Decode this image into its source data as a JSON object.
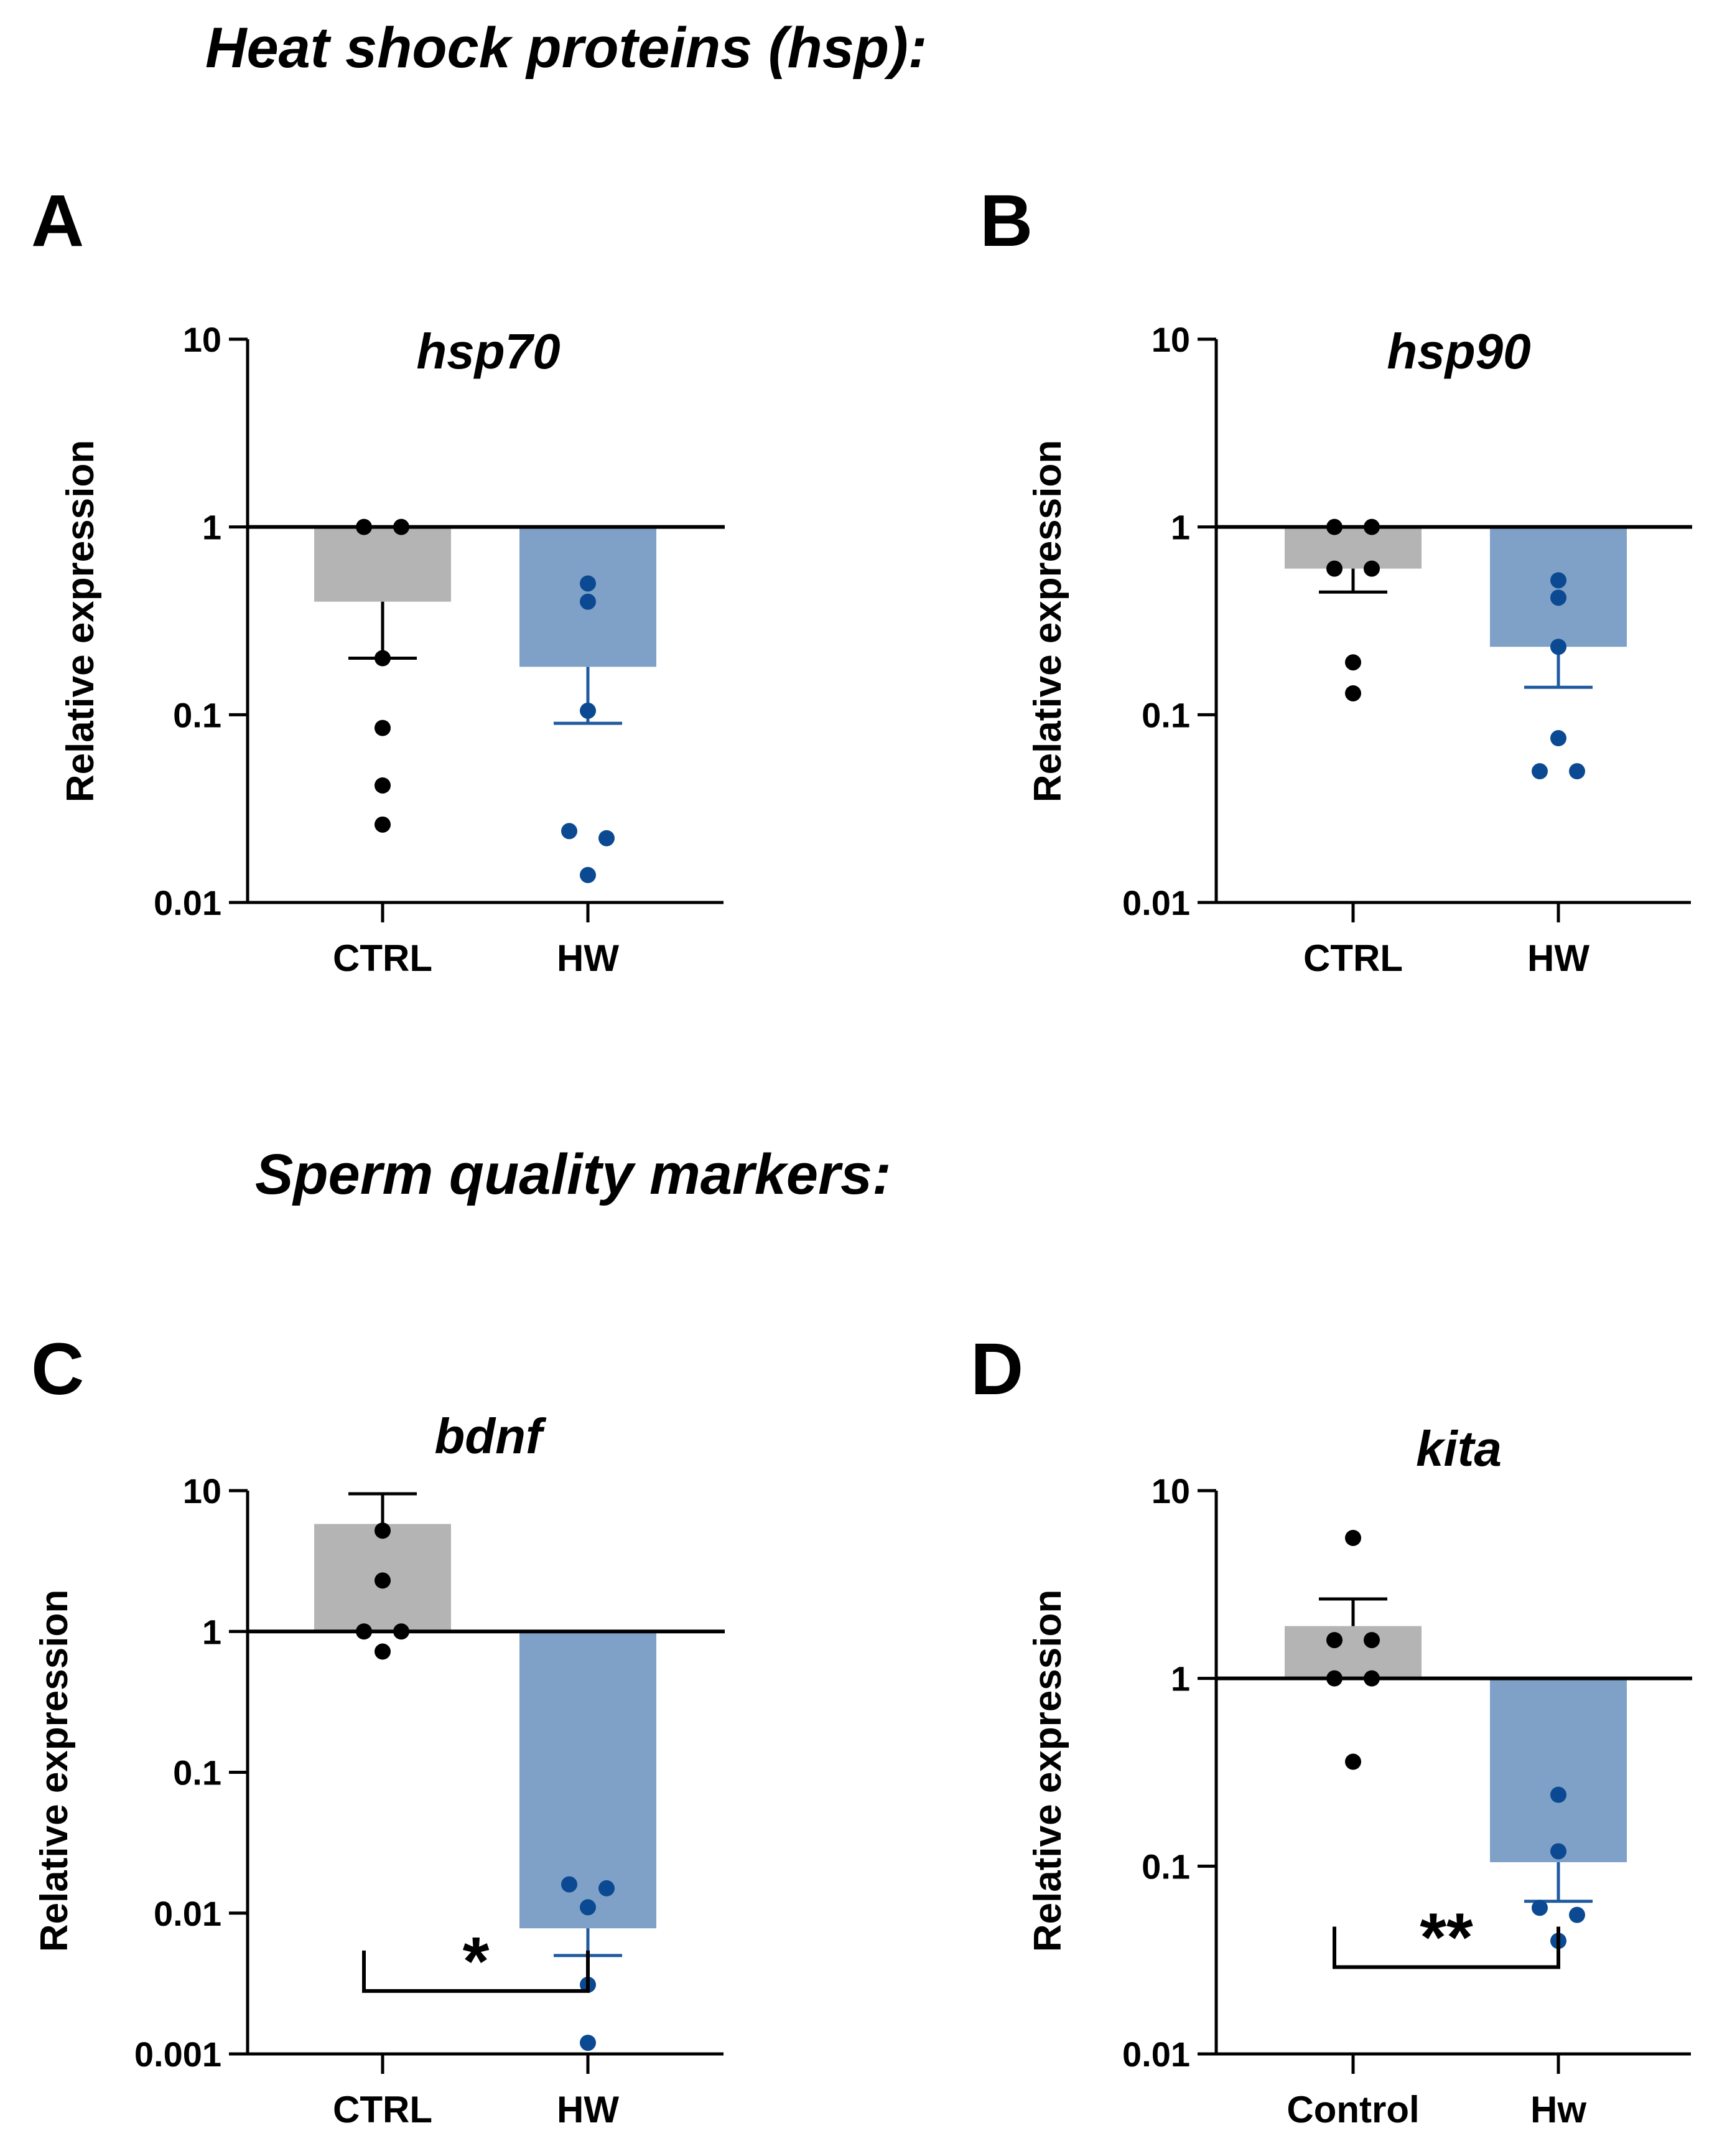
{
  "headings": {
    "hsp": "Heat shock proteins (hsp):",
    "sperm": "Sperm quality markers:"
  },
  "colors": {
    "ctrl_bar": "#b4b4b4",
    "hw_bar": "#7fa1c8",
    "ctrl_dot": "#000000",
    "hw_dot": "#0b4a92",
    "hw_err": "#1f5aa0",
    "axis": "#000000"
  },
  "chart_data": [
    {
      "panel": "A",
      "type": "bar",
      "title": "hsp70",
      "ylabel": "Relative expression",
      "yscale": "log",
      "ylim": [
        0.01,
        10
      ],
      "yticks": [
        "0.01",
        "0.1",
        "1",
        "10"
      ],
      "baseline": 1,
      "categories": [
        "CTRL",
        "HW"
      ],
      "series": [
        {
          "name": "CTRL",
          "mean": 0.4,
          "sem_end": 0.2,
          "points": [
            1.0,
            1.0,
            0.2,
            0.085,
            0.042,
            0.026
          ]
        },
        {
          "name": "HW",
          "mean": 0.18,
          "sem_end": 0.09,
          "points": [
            0.5,
            0.4,
            0.105,
            0.024,
            0.022,
            0.014
          ]
        }
      ],
      "significance": null
    },
    {
      "panel": "B",
      "type": "bar",
      "title": "hsp90",
      "ylabel": "Relative expression",
      "yscale": "log",
      "ylim": [
        0.01,
        10
      ],
      "yticks": [
        "0.01",
        "0.1",
        "1",
        "10"
      ],
      "baseline": 1,
      "categories": [
        "CTRL",
        "HW"
      ],
      "series": [
        {
          "name": "CTRL",
          "mean": 0.6,
          "sem_end": 0.45,
          "points": [
            1.0,
            1.0,
            0.6,
            0.6,
            0.19,
            0.13
          ]
        },
        {
          "name": "HW",
          "mean": 0.23,
          "sem_end": 0.14,
          "points": [
            0.52,
            0.42,
            0.23,
            0.075,
            0.05,
            0.05
          ]
        }
      ],
      "significance": null
    },
    {
      "panel": "C",
      "type": "bar",
      "title": "bdnf",
      "ylabel": "Relative expression",
      "yscale": "log",
      "ylim": [
        0.001,
        10
      ],
      "yticks": [
        "0.001",
        "0.01",
        "0.1",
        "1",
        "10"
      ],
      "baseline": 1,
      "categories": [
        "CTRL",
        "HW"
      ],
      "series": [
        {
          "name": "CTRL",
          "mean": 5.8,
          "sem_end": 9.5,
          "points": [
            5.2,
            2.3,
            1.0,
            1.0,
            0.72
          ]
        },
        {
          "name": "HW",
          "mean": 0.0078,
          "sem_end": 0.005,
          "points": [
            0.016,
            0.015,
            0.011,
            0.0031,
            0.0012
          ]
        }
      ],
      "significance": {
        "label": "*",
        "bracket_y": 0.0028
      }
    },
    {
      "panel": "D",
      "type": "bar",
      "title": "kita",
      "ylabel": "Relative expression",
      "yscale": "log",
      "ylim": [
        0.01,
        10
      ],
      "yticks": [
        "0.01",
        "0.1",
        "1",
        "10"
      ],
      "baseline": 1,
      "categories": [
        "Control",
        "Hw"
      ],
      "series": [
        {
          "name": "Control",
          "mean": 1.9,
          "sem_end": 2.65,
          "points": [
            5.6,
            1.6,
            1.6,
            1.0,
            1.0,
            0.36
          ]
        },
        {
          "name": "Hw",
          "mean": 0.105,
          "sem_end": 0.065,
          "points": [
            0.24,
            0.12,
            0.06,
            0.055,
            0.04
          ]
        }
      ],
      "significance": {
        "label": "**",
        "bracket_y": 0.029
      }
    }
  ]
}
